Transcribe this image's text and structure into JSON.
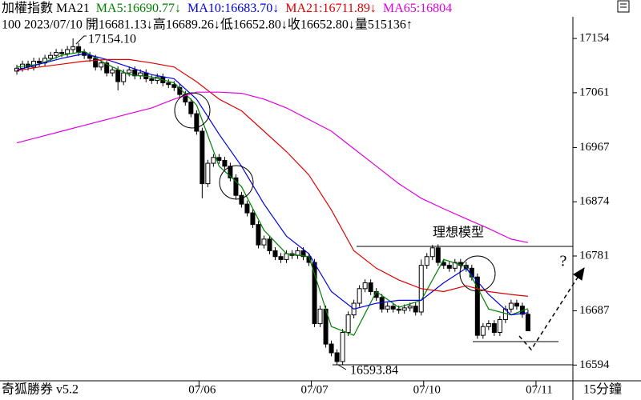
{
  "chart_data": {
    "type": "candlestick",
    "header": {
      "label": "加權指數 MA21",
      "items": [
        "MA5:16690.77↓",
        "MA10:16683.70↓",
        "MA21:16711.89↓",
        "MA65:16804"
      ]
    },
    "info": "100 2023/07/10 開16681.13↓高16689.26↓低16652.80↓收16652.80↓量515136↑",
    "footer": {
      "left": "奇狐勝券 v5.2",
      "right": "15分鐘"
    },
    "annotations": {
      "high": "17154.10",
      "low": "16593.84",
      "model": "理想模型",
      "question": "?"
    },
    "open": [
      17098,
      17103,
      17110,
      17105,
      17115,
      17112,
      17120,
      17125,
      17130,
      17128,
      17135,
      17140,
      17130,
      17125,
      17120,
      17105,
      17112,
      17095,
      17100,
      17080,
      17095,
      17100,
      17090,
      17095,
      17085,
      17082,
      17088,
      17078,
      17075,
      17070,
      17058,
      17045,
      17025,
      16995,
      16905,
      16940,
      16950,
      16945,
      16935,
      16915,
      16885,
      16870,
      16855,
      16835,
      16800,
      16810,
      16790,
      16780,
      16775,
      16785,
      16782,
      16790,
      16780,
      16770,
      16665,
      16690,
      16630,
      16615,
      16600,
      16650,
      16680,
      16700,
      16725,
      16735,
      16720,
      16710,
      16690,
      16695,
      16690,
      16688,
      16692,
      16695,
      16685,
      16765,
      16780,
      16795,
      16770,
      16765,
      16760,
      16770,
      16765,
      16760,
      16745,
      16645,
      16660,
      16665,
      16650,
      16672,
      16690,
      16700,
      16695,
      16681.13
    ],
    "high": [
      17109,
      17116,
      17116,
      17121,
      17121,
      17126,
      17131,
      17136,
      17136,
      17141,
      17154.1,
      17146,
      17136,
      17131,
      17126,
      17118,
      17118,
      17106,
      17106,
      17101,
      17106,
      17106,
      17101,
      17101,
      17091,
      17094,
      17094,
      17084,
      17081,
      17076,
      17064,
      17051,
      17031,
      17001,
      16946,
      16956,
      16956,
      16951,
      16941,
      16921,
      16891,
      16876,
      16861,
      16841,
      16816,
      16816,
      16796,
      16786,
      16791,
      16791,
      16796,
      16796,
      16786,
      16776,
      16696,
      16696,
      16636,
      16621,
      16656,
      16686,
      16706,
      16731,
      16741,
      16741,
      16726,
      16716,
      16701,
      16701,
      16696,
      16698,
      16701,
      16701,
      16775,
      16786,
      16800,
      16801,
      16776,
      16771,
      16776,
      16776,
      16771,
      16766,
      16751,
      16666,
      16671,
      16671,
      16678,
      16696,
      16706,
      16706,
      16701,
      16689.26
    ],
    "low": [
      17092,
      17097,
      17099,
      17099,
      17106,
      17106,
      17114,
      17119,
      17122,
      17122,
      17129,
      17124,
      17119,
      17114,
      17099,
      17099,
      17089,
      17089,
      17065,
      17074,
      17089,
      17084,
      17084,
      17079,
      17076,
      17076,
      17072,
      17069,
      17064,
      17052,
      17039,
      17019,
      16989,
      16880,
      16899,
      16934,
      16939,
      16929,
      16909,
      16879,
      16864,
      16849,
      16829,
      16794,
      16794,
      16784,
      16774,
      16769,
      16769,
      16776,
      16776,
      16774,
      16764,
      16659,
      16659,
      16624,
      16609,
      16593.84,
      16594,
      16644,
      16674,
      16694,
      16719,
      16714,
      16704,
      16684,
      16684,
      16684,
      16682,
      16682,
      16686,
      16679,
      16679,
      16759,
      16774,
      16764,
      16759,
      16754,
      16754,
      16759,
      16754,
      16739,
      16639,
      16639,
      16654,
      16644,
      16644,
      16666,
      16684,
      16689,
      16675,
      16652.8
    ],
    "close": [
      17103,
      17110,
      17105,
      17115,
      17112,
      17120,
      17125,
      17130,
      17128,
      17135,
      17140,
      17130,
      17125,
      17120,
      17105,
      17112,
      17095,
      17100,
      17080,
      17095,
      17100,
      17090,
      17095,
      17085,
      17082,
      17088,
      17078,
      17075,
      17070,
      17058,
      17045,
      17025,
      16995,
      16905,
      16940,
      16950,
      16945,
      16935,
      16915,
      16885,
      16870,
      16855,
      16835,
      16800,
      16810,
      16790,
      16780,
      16775,
      16785,
      16782,
      16790,
      16780,
      16770,
      16665,
      16690,
      16630,
      16615,
      16600,
      16650,
      16680,
      16700,
      16725,
      16735,
      16720,
      16710,
      16690,
      16695,
      16690,
      16688,
      16692,
      16695,
      16685,
      16765,
      16780,
      16795,
      16770,
      16765,
      16760,
      16770,
      16765,
      16760,
      16745,
      16645,
      16660,
      16665,
      16650,
      16672,
      16690,
      16700,
      16695,
      16681.13,
      16652.8
    ],
    "series": [
      {
        "name": "MA5",
        "color": "#008000",
        "x": [
          0,
          4,
          8,
          12,
          16,
          20,
          24,
          28,
          32,
          36,
          40,
          44,
          48,
          52,
          56,
          60,
          64,
          68,
          72,
          76,
          80,
          84,
          88,
          91
        ],
        "values": [
          17105,
          17110,
          17125,
          17132,
          17110,
          17092,
          17088,
          17078,
          17040,
          16935,
          16900,
          16825,
          16785,
          16780,
          16660,
          16645,
          16720,
          16693,
          16705,
          16775,
          16763,
          16690,
          16680,
          16690.77
        ]
      },
      {
        "name": "MA10",
        "color": "#0000e0",
        "x": [
          0,
          4,
          8,
          12,
          16,
          20,
          24,
          28,
          32,
          36,
          40,
          44,
          48,
          52,
          56,
          60,
          64,
          68,
          72,
          76,
          80,
          84,
          88,
          91
        ],
        "values": [
          17100,
          17110,
          17120,
          17128,
          17118,
          17105,
          17092,
          17085,
          17050,
          16990,
          16935,
          16870,
          16815,
          16785,
          16720,
          16690,
          16700,
          16705,
          16705,
          16735,
          16760,
          16715,
          16680,
          16683.7
        ]
      },
      {
        "name": "MA21",
        "color": "#e00000",
        "x": [
          0,
          4,
          8,
          12,
          16,
          20,
          24,
          28,
          32,
          36,
          40,
          44,
          48,
          52,
          56,
          60,
          64,
          68,
          72,
          76,
          80,
          84,
          88,
          91
        ],
        "values": [
          17099,
          17105,
          17110,
          17115,
          17118,
          17118,
          17112,
          17105,
          17080,
          17050,
          17030,
          16995,
          16960,
          16920,
          16860,
          16790,
          16760,
          16740,
          16725,
          16720,
          16730,
          16720,
          16715,
          16711.89
        ]
      },
      {
        "name": "MA65",
        "color": "#e000e0",
        "x": [
          0,
          4,
          8,
          12,
          16,
          20,
          24,
          28,
          32,
          36,
          40,
          44,
          48,
          52,
          56,
          60,
          64,
          68,
          72,
          76,
          80,
          84,
          88,
          91
        ],
        "values": [
          16975,
          16985,
          16995,
          17005,
          17015,
          17025,
          17035,
          17050,
          17062,
          17062,
          17060,
          17050,
          17035,
          17015,
          16995,
          16965,
          16935,
          16905,
          16880,
          16862,
          16845,
          16828,
          16810,
          16804
        ]
      }
    ],
    "xlim": [
      -3,
      99
    ],
    "xticks": [
      {
        "value": 33,
        "label": "07/06"
      },
      {
        "value": 53,
        "label": "07/07"
      },
      {
        "value": 73,
        "label": "07/10"
      },
      {
        "value": 93,
        "label": "07/11"
      }
    ],
    "ylim": [
      16567,
      17220
    ],
    "yticks": [
      17154,
      17061,
      16967,
      16874,
      16781,
      16687,
      16594
    ]
  }
}
